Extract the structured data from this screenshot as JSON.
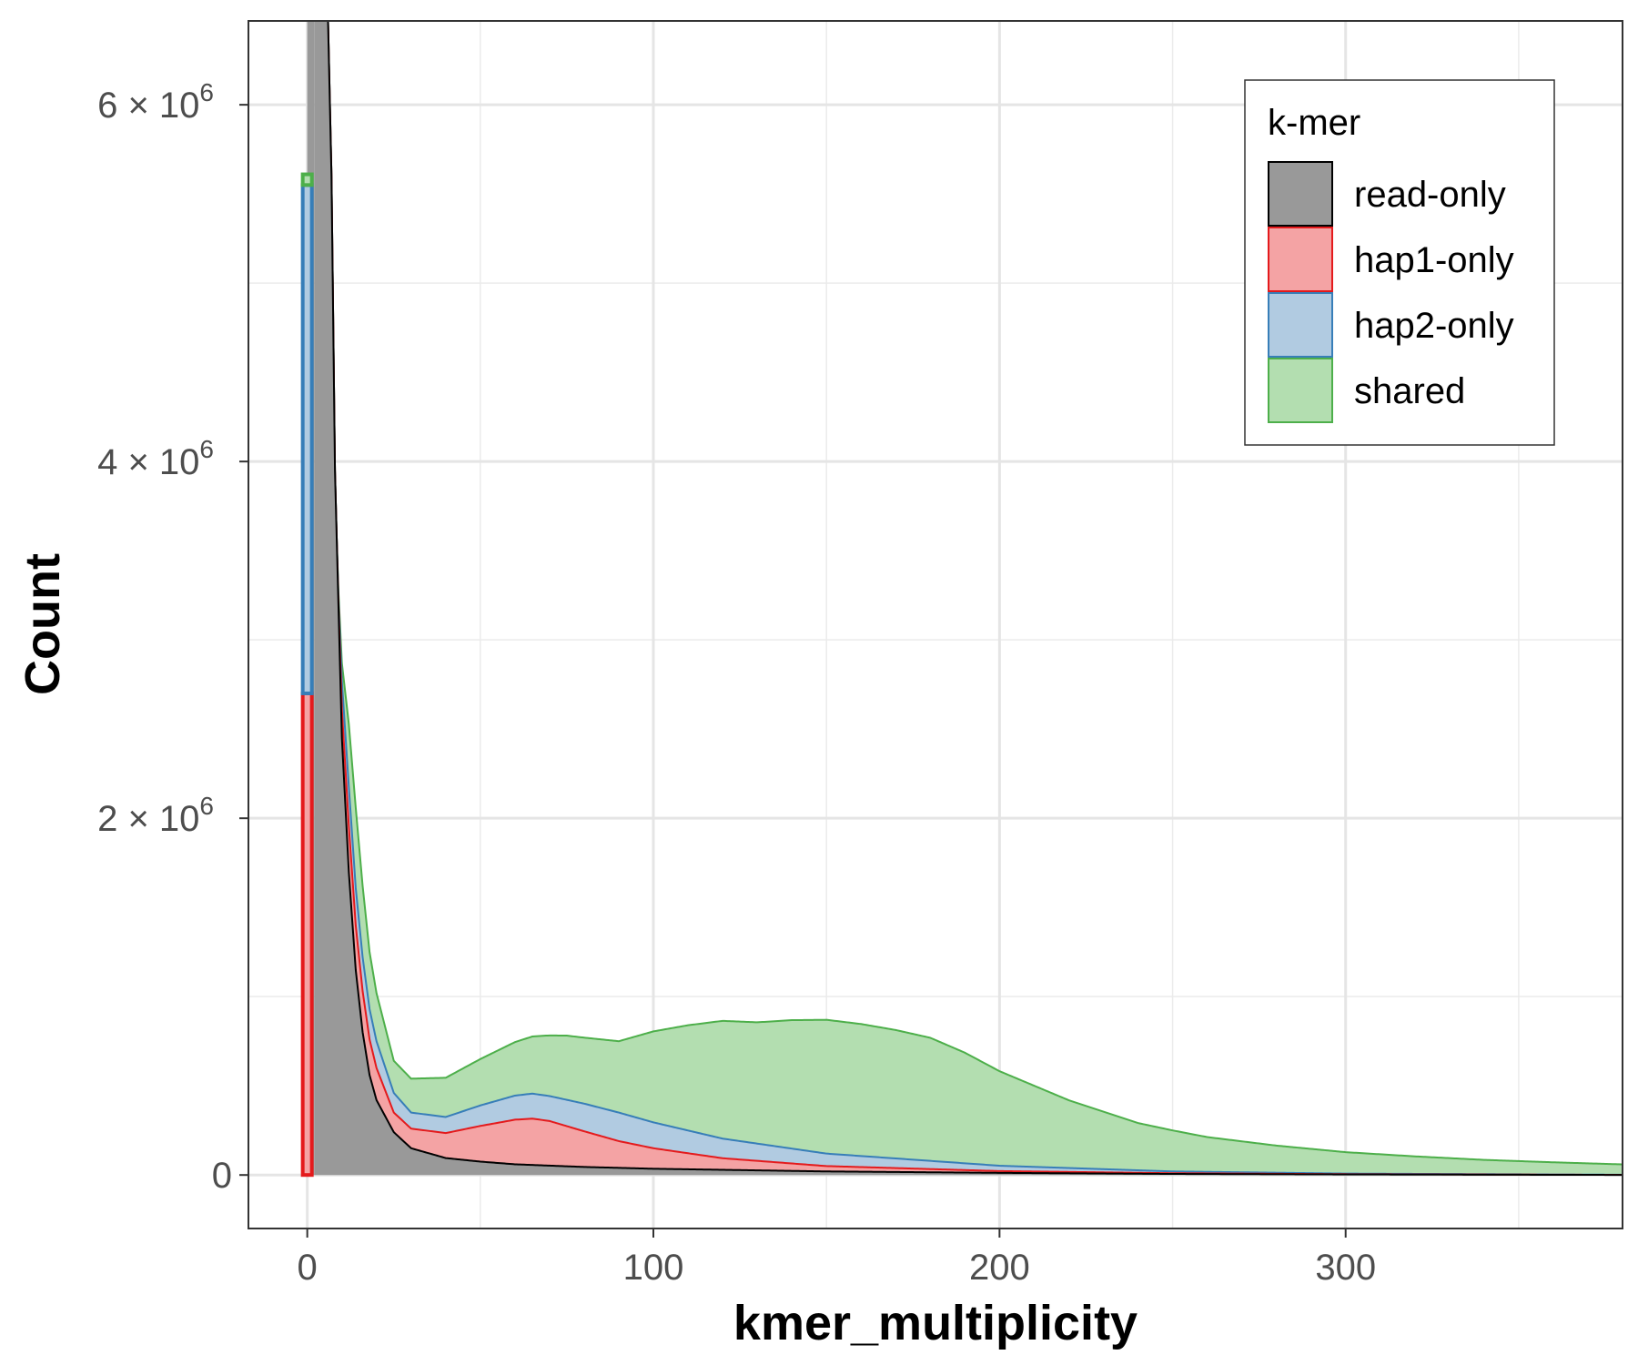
{
  "chart_data": {
    "type": "area",
    "stacked": true,
    "xlabel": "kmer_multiplicity",
    "ylabel": "Count",
    "xlim": [
      -17,
      380
    ],
    "ylim": [
      -300000,
      6470000
    ],
    "x_ticks": [
      0,
      100,
      200,
      300
    ],
    "x_tick_labels": [
      "0",
      "100",
      "200",
      "300"
    ],
    "y_ticks": [
      0,
      2000000,
      4000000,
      6000000
    ],
    "y_tick_labels": [
      {
        "mantissa": "0",
        "exponent": ""
      },
      {
        "mantissa": "2 × 10",
        "exponent": "6"
      },
      {
        "mantissa": "4 × 10",
        "exponent": "6"
      },
      {
        "mantissa": "6 × 10",
        "exponent": "6"
      }
    ],
    "grid": true,
    "legend": {
      "title": "k-mer",
      "position": "top-right",
      "entries": [
        "read-only",
        "hap1-only",
        "hap2-only",
        "shared"
      ]
    },
    "zero_bin": {
      "x": 0,
      "series": [
        {
          "name": "hap1-only",
          "value": 2700000
        },
        {
          "name": "hap2-only",
          "value": 2850000
        },
        {
          "name": "shared",
          "value": 60000
        }
      ]
    },
    "series": [
      {
        "name": "read-only",
        "color": "#000000",
        "fill": "#999999",
        "x": [
          2,
          4,
          5,
          6,
          7,
          8,
          10,
          12,
          14,
          16,
          18,
          20,
          25,
          30,
          40,
          50,
          60,
          80,
          100,
          150,
          200,
          250,
          300,
          380
        ],
        "values": [
          6470000,
          6470000,
          6470000,
          6470000,
          5600000,
          3950000,
          2450000,
          1700000,
          1150000,
          800000,
          560000,
          420000,
          240000,
          150000,
          95000,
          75000,
          60000,
          45000,
          35000,
          20000,
          12000,
          6000,
          3000,
          500
        ]
      },
      {
        "name": "hap1-only",
        "color": "#e41a1c",
        "fill": "#f4a3a4",
        "x": [
          9,
          10,
          12,
          14,
          16,
          18,
          20,
          25,
          30,
          40,
          50,
          60,
          65,
          70,
          80,
          90,
          100,
          120,
          150,
          200,
          250,
          300,
          380
        ],
        "values": [
          20000,
          160000,
          260000,
          250000,
          230000,
          200000,
          180000,
          110000,
          110000,
          140000,
          200000,
          250000,
          260000,
          250000,
          200000,
          150000,
          115000,
          65000,
          30000,
          10000,
          4000,
          1500,
          300
        ]
      },
      {
        "name": "hap2-only",
        "color": "#377eb8",
        "fill": "#b1cbe1",
        "x": [
          9,
          10,
          12,
          14,
          16,
          18,
          20,
          25,
          30,
          40,
          50,
          60,
          65,
          70,
          80,
          90,
          100,
          120,
          150,
          200,
          250,
          300,
          380
        ],
        "values": [
          20000,
          160000,
          220000,
          210000,
          190000,
          170000,
          150000,
          110000,
          90000,
          90000,
          115000,
          135000,
          140000,
          140000,
          155000,
          160000,
          145000,
          110000,
          70000,
          30000,
          10000,
          3500,
          700
        ]
      },
      {
        "name": "shared",
        "color": "#4daf4a",
        "fill": "#b3deb0",
        "x": [
          9,
          10,
          12,
          14,
          16,
          18,
          20,
          25,
          30,
          40,
          50,
          60,
          70,
          75,
          80,
          90,
          100,
          110,
          120,
          130,
          140,
          150,
          160,
          170,
          180,
          190,
          200,
          220,
          240,
          260,
          280,
          300,
          320,
          340,
          360,
          380
        ],
        "values": [
          30000,
          100000,
          350000,
          450000,
          400000,
          320000,
          270000,
          180000,
          190000,
          220000,
          260000,
          300000,
          340000,
          360000,
          370000,
          400000,
          510000,
          590000,
          660000,
          680000,
          720000,
          750000,
          740000,
          720000,
          690000,
          620000,
          530000,
          380000,
          265000,
          195000,
          152000,
          120000,
          98000,
          80000,
          68000,
          58000
        ]
      }
    ]
  }
}
